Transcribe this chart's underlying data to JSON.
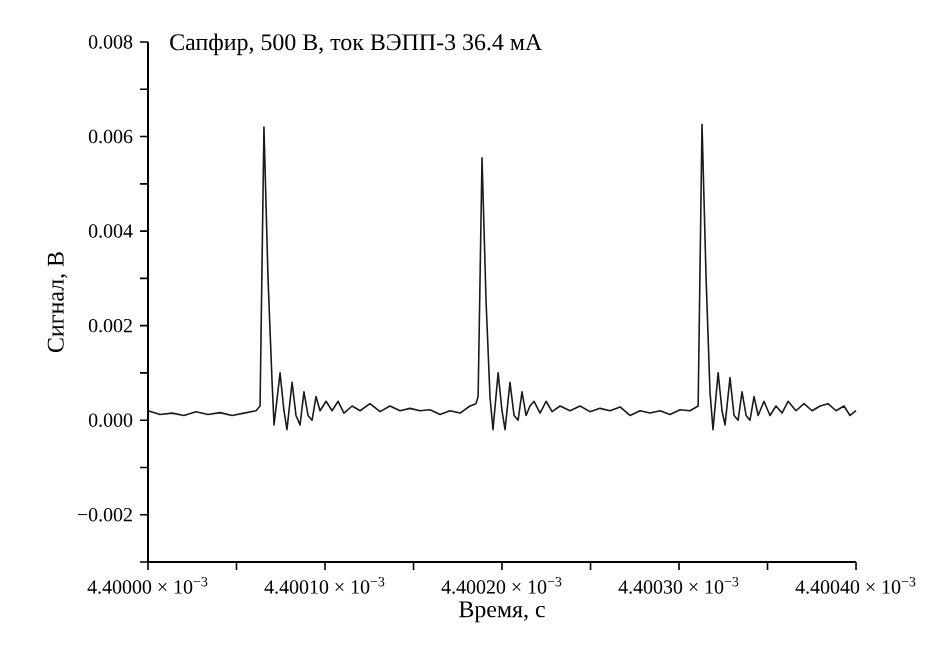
{
  "chart_data": {
    "type": "line",
    "title": "Сапфир, 500 В, ток ВЭПП-3 36.4 мА",
    "xlabel": "Время, с",
    "ylabel": "Сигнал, В",
    "xlim": [
      0.0044,
      0.0044004
    ],
    "xticks": [
      {
        "value": 0.0044,
        "label": "4.40000 × 10$^{−3}$"
      },
      {
        "value": 0.00440005,
        "label": null
      },
      {
        "value": 0.0044001,
        "label": "4.40010 × 10$^{−3}$"
      },
      {
        "value": 0.00440015,
        "label": null
      },
      {
        "value": 0.0044002,
        "label": "4.40020 × 10$^{−3}$"
      },
      {
        "value": 0.00440025,
        "label": null
      },
      {
        "value": 0.0044003,
        "label": "4.40030 × 10$^{−3}$"
      },
      {
        "value": 0.00440035,
        "label": null
      },
      {
        "value": 0.0044004,
        "label": "4.40040 × 10$^{−3}$"
      }
    ],
    "ylim": [
      -0.003,
      0.008
    ],
    "yticks": [
      {
        "value": -0.003,
        "label": null
      },
      {
        "value": -0.002,
        "label": "−0.002"
      },
      {
        "value": -0.001,
        "label": null
      },
      {
        "value": 0.0,
        "label": "0.000"
      },
      {
        "value": 0.001,
        "label": null
      },
      {
        "value": 0.002,
        "label": "0.002"
      },
      {
        "value": 0.003,
        "label": null
      },
      {
        "value": 0.004,
        "label": "0.004"
      },
      {
        "value": 0.005,
        "label": null
      },
      {
        "value": 0.006,
        "label": "0.006"
      },
      {
        "value": 0.007,
        "label": null
      },
      {
        "value": 0.008,
        "label": "0.008"
      }
    ],
    "grid": false,
    "marker": "none",
    "line_style": "solid",
    "series": [
      {
        "color": "#1a1a1a",
        "x": [
          0.0044,
          0.0044000068,
          0.0044000136,
          0.0044000203,
          0.0044000271,
          0.0044000339,
          0.0044000407,
          0.0044000475,
          0.0044000542,
          0.004400061,
          0.0044000633,
          0.0044000655,
          0.0044000678,
          0.0044000701,
          0.0044000712,
          0.0044000746,
          0.0044000768,
          0.0044000785,
          0.0044000814,
          0.0044000836,
          0.0044000859,
          0.0044000881,
          0.0044000904,
          0.0044000927,
          0.0044000949,
          0.0044000972,
          0.0044001006,
          0.004400104,
          0.0044001074,
          0.0044001107,
          0.0044001153,
          0.0044001198,
          0.0044001254,
          0.0044001311,
          0.0044001367,
          0.0044001424,
          0.004400148,
          0.0044001537,
          0.0044001593,
          0.004400165,
          0.0044001706,
          0.0044001763,
          0.0044001819,
          0.0044001853,
          0.0044001865,
          0.0044001887,
          0.004400191,
          0.0044001932,
          0.0044001949,
          0.0044001978,
          0.0044002,
          0.0044002017,
          0.0044002045,
          0.0044002068,
          0.0044002091,
          0.0044002113,
          0.0044002136,
          0.0044002158,
          0.0044002181,
          0.0044002215,
          0.0044002249,
          0.0044002283,
          0.0044002328,
          0.0044002384,
          0.0044002441,
          0.0044002497,
          0.0044002554,
          0.004400261,
          0.0044002667,
          0.0044002723,
          0.004400278,
          0.0044002836,
          0.0044002893,
          0.0044002949,
          0.0044003006,
          0.0044003062,
          0.0044003108,
          0.004400313,
          0.0044003153,
          0.0044003175,
          0.0044003192,
          0.0044003221,
          0.0044003243,
          0.004400326,
          0.0044003288,
          0.0044003311,
          0.0044003334,
          0.0044003356,
          0.0044003379,
          0.0044003401,
          0.0044003424,
          0.0044003447,
          0.004400348,
          0.0044003514,
          0.0044003548,
          0.0044003582,
          0.0044003616,
          0.0044003661,
          0.0044003706,
          0.0044003752,
          0.0044003797,
          0.0044003842,
          0.0044003887,
          0.0044003932,
          0.0044003966,
          0.0044004
        ],
        "values": [
          0.0002,
          0.00012,
          0.00015,
          0.0001,
          0.00018,
          0.00012,
          0.00016,
          0.0001,
          0.00015,
          0.0002,
          0.0003,
          0.0062,
          0.003,
          0.0008,
          -0.0001,
          0.001,
          0.0002,
          -0.0002,
          0.0008,
          0.0001,
          -0.0001,
          0.0006,
          0.0001,
          0.0,
          0.0005,
          0.0002,
          0.0004,
          0.0002,
          0.0004,
          0.00015,
          0.0003,
          0.0002,
          0.00035,
          0.00018,
          0.0003,
          0.0002,
          0.00025,
          0.0002,
          0.00022,
          0.00012,
          0.0002,
          0.00015,
          0.0003,
          0.00035,
          0.0005,
          0.00555,
          0.0025,
          0.0005,
          -0.0002,
          0.001,
          0.0002,
          -0.0002,
          0.0008,
          0.0001,
          0.0,
          0.0006,
          0.0001,
          0.0003,
          0.0004,
          0.00015,
          0.0004,
          0.00018,
          0.0003,
          0.0002,
          0.0003,
          0.00018,
          0.00025,
          0.0002,
          0.00028,
          0.0001,
          0.0002,
          0.00015,
          0.0002,
          0.00012,
          0.00022,
          0.0002,
          0.0003,
          0.00626,
          0.003,
          0.0006,
          -0.0002,
          0.001,
          0.0002,
          -0.0001,
          0.0009,
          0.0001,
          0.0,
          0.0006,
          0.0001,
          0.0,
          0.0005,
          0.0001,
          0.0004,
          0.0001,
          0.0003,
          0.00015,
          0.0004,
          0.0002,
          0.00035,
          0.0002,
          0.0003,
          0.00035,
          0.0002,
          0.0003,
          0.0001,
          0.0002
        ]
      }
    ]
  }
}
